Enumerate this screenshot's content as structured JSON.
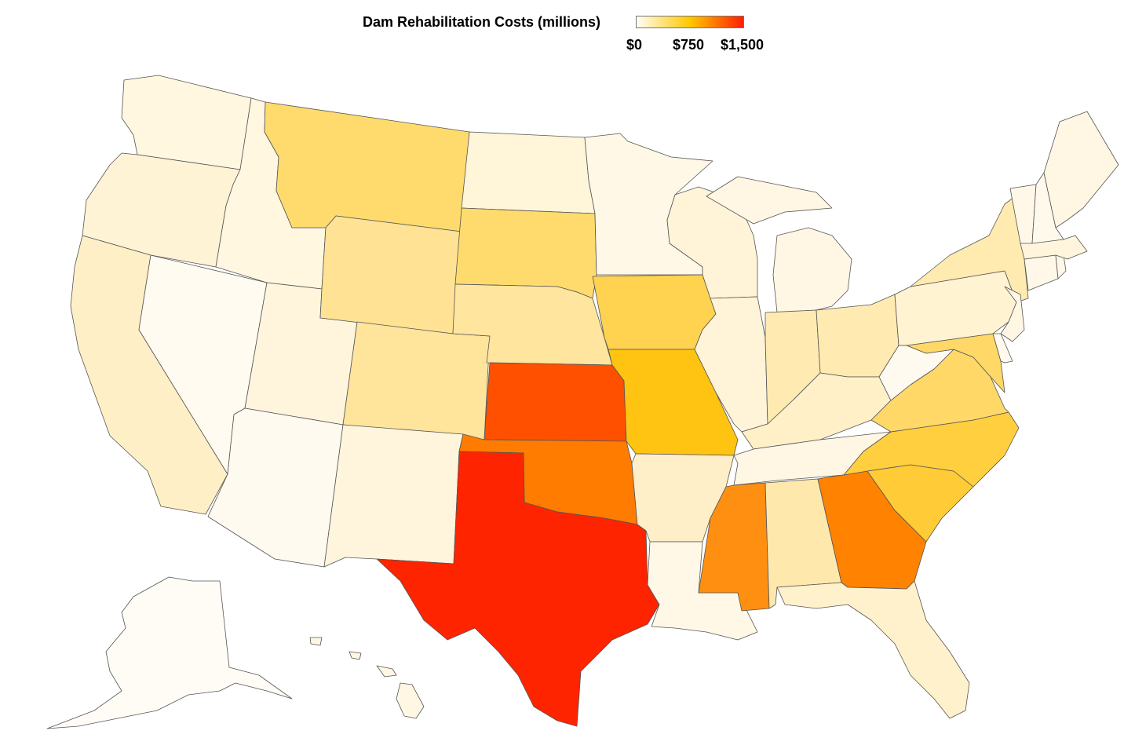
{
  "legend": {
    "title": "Dam Rehabilitation Costs (millions)",
    "tick_labels": [
      "$0",
      "$750",
      "$1,500"
    ],
    "range": [
      0,
      1500
    ],
    "colors": [
      "#fffdf5",
      "#ffc800",
      "#ff1e00"
    ]
  },
  "states": [
    {
      "id": "WA",
      "fill": "#fff7e0"
    },
    {
      "id": "OR",
      "fill": "#fff3d6"
    },
    {
      "id": "CA",
      "fill": "#ffefc6"
    },
    {
      "id": "ID",
      "fill": "#fff7e0"
    },
    {
      "id": "NV",
      "fill": "#fffbf0"
    },
    {
      "id": "UT",
      "fill": "#fff5dc"
    },
    {
      "id": "AZ",
      "fill": "#fffaf0"
    },
    {
      "id": "MT",
      "fill": "#ffdb6e"
    },
    {
      "id": "WY",
      "fill": "#ffe294"
    },
    {
      "id": "CO",
      "fill": "#ffe49c"
    },
    {
      "id": "NM",
      "fill": "#fff5dc"
    },
    {
      "id": "ND",
      "fill": "#fff5d9"
    },
    {
      "id": "SD",
      "fill": "#ffdb6e"
    },
    {
      "id": "NE",
      "fill": "#ffe59e"
    },
    {
      "id": "KS",
      "fill": "#ff5000"
    },
    {
      "id": "OK",
      "fill": "#ff7c00"
    },
    {
      "id": "TX",
      "fill": "#ff2400"
    },
    {
      "id": "MN",
      "fill": "#fff8e6"
    },
    {
      "id": "IA",
      "fill": "#ffd24f"
    },
    {
      "id": "MO",
      "fill": "#ffc312"
    },
    {
      "id": "AR",
      "fill": "#ffefc8"
    },
    {
      "id": "LA",
      "fill": "#fff8e6"
    },
    {
      "id": "WI",
      "fill": "#fff3d8"
    },
    {
      "id": "IL",
      "fill": "#fff3d8"
    },
    {
      "id": "MI",
      "fill": "#fff7e4"
    },
    {
      "id": "IN",
      "fill": "#ffeab2"
    },
    {
      "id": "OH",
      "fill": "#ffeab2"
    },
    {
      "id": "KY",
      "fill": "#fff0c8"
    },
    {
      "id": "TN",
      "fill": "#fff7e4"
    },
    {
      "id": "MS",
      "fill": "#ff8f10"
    },
    {
      "id": "AL",
      "fill": "#ffe8ac"
    },
    {
      "id": "GA",
      "fill": "#ff8300"
    },
    {
      "id": "FL",
      "fill": "#fff1cc"
    },
    {
      "id": "SC",
      "fill": "#ffcc38"
    },
    {
      "id": "NC",
      "fill": "#ffcf40"
    },
    {
      "id": "VA",
      "fill": "#ffd868"
    },
    {
      "id": "WV",
      "fill": "#fffaf0"
    },
    {
      "id": "PA",
      "fill": "#fff3d2"
    },
    {
      "id": "NY",
      "fill": "#ffeab0"
    },
    {
      "id": "NJ",
      "fill": "#fff7e4"
    },
    {
      "id": "DE",
      "fill": "#fff9ee"
    },
    {
      "id": "MD",
      "fill": "#ffd868"
    },
    {
      "id": "CT",
      "fill": "#fff8e8"
    },
    {
      "id": "RI",
      "fill": "#fff8e8"
    },
    {
      "id": "MA",
      "fill": "#fff5dc"
    },
    {
      "id": "VT",
      "fill": "#fff8e8"
    },
    {
      "id": "NH",
      "fill": "#fff9ec"
    },
    {
      "id": "ME",
      "fill": "#fff7e4"
    },
    {
      "id": "AK",
      "fill": "#fffcf6"
    },
    {
      "id": "HI",
      "fill": "#fff7e4"
    }
  ]
}
